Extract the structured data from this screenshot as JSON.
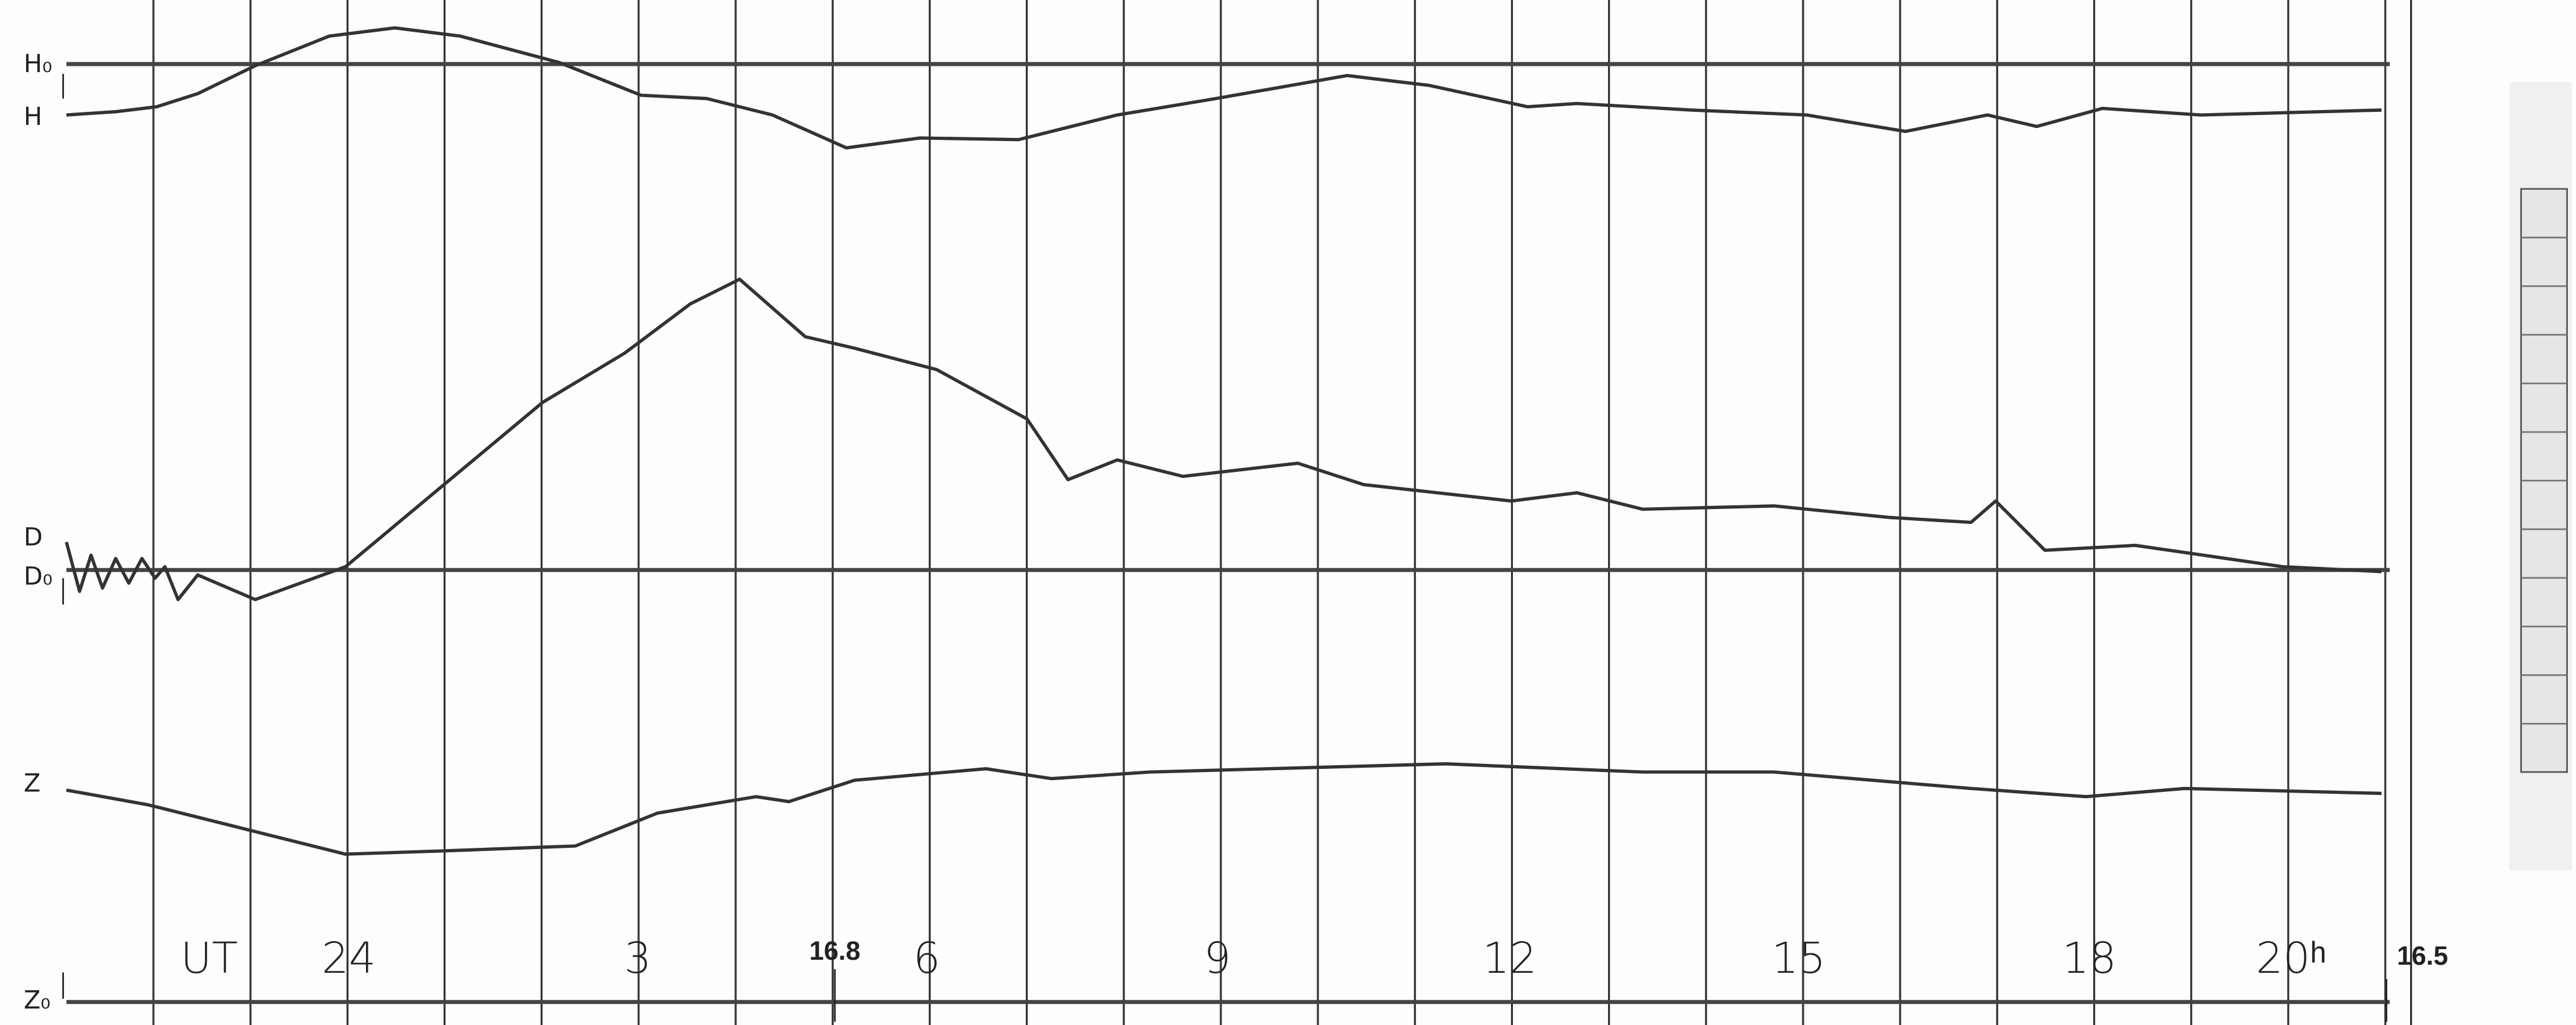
{
  "labels": {
    "h0": "H₀",
    "h": "H",
    "d": "D",
    "d0": "D₀",
    "z": "Z",
    "z0": "Z₀"
  },
  "time_axis": {
    "unit": "UT",
    "hours": [
      "24",
      "3",
      "6",
      "9",
      "12",
      "15",
      "18",
      "20ʰ"
    ]
  },
  "markers": [
    "16.8",
    "16.5"
  ]
}
